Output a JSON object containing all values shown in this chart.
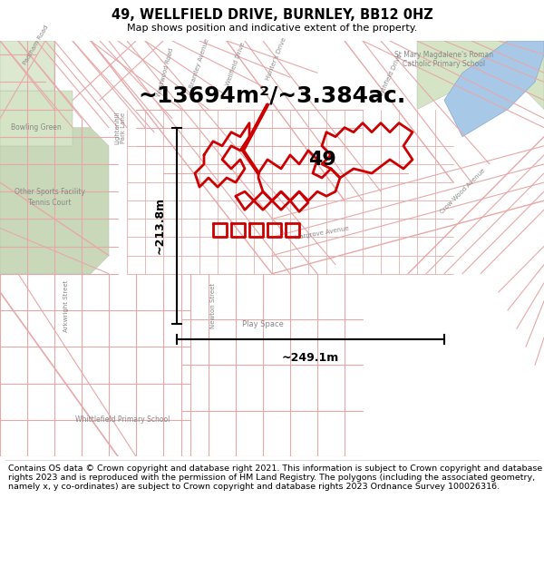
{
  "title_line1": "49, WELLFIELD DRIVE, BURNLEY, BB12 0HZ",
  "title_line2": "Map shows position and indicative extent of the property.",
  "area_text": "~13694m²/~3.384ac.",
  "label_49": "49",
  "dim_horizontal": "~249.1m",
  "dim_vertical": "~213.8m",
  "copyright_text": "Contains OS data © Crown copyright and database right 2021. This information is subject to Crown copyright and database rights 2023 and is reproduced with the permission of HM Land Registry. The polygons (including the associated geometry, namely x, y co-ordinates) are subject to Crown copyright and database rights 2023 Ordnance Survey 100026316.",
  "bg_color": "#f5f0eb",
  "road_light": "#e8a8a8",
  "road_dark": "#cc4444",
  "highlight_color": "#cc0000",
  "white": "#ffffff",
  "text_color": "#000000",
  "green1": "#c8d8b8",
  "green2": "#d4e4c4",
  "green3": "#dce8d0",
  "river_color": "#a8c8e8"
}
